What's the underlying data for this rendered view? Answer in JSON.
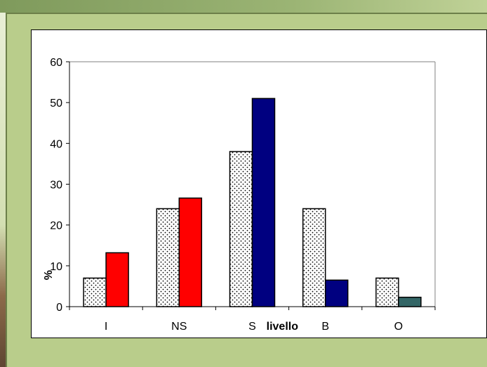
{
  "chart_data": {
    "type": "bar",
    "categories": [
      "I",
      "NS",
      "S",
      "B",
      "O"
    ],
    "series": [
      {
        "values": [
          7,
          24,
          38,
          24,
          7
        ],
        "color": "#ffffff",
        "pattern": "dotted"
      },
      {
        "values": [
          13.2,
          26.6,
          51,
          6.5,
          2.3
        ],
        "colors": [
          "#ff0000",
          "#ff0000",
          "#000080",
          "#000080",
          "#336666"
        ]
      }
    ],
    "ylim": [
      0,
      60
    ],
    "yticks": [
      0,
      10,
      20,
      30,
      40,
      50,
      60
    ],
    "xlabel": "livello",
    "ylabel": "%",
    "grid": false
  }
}
